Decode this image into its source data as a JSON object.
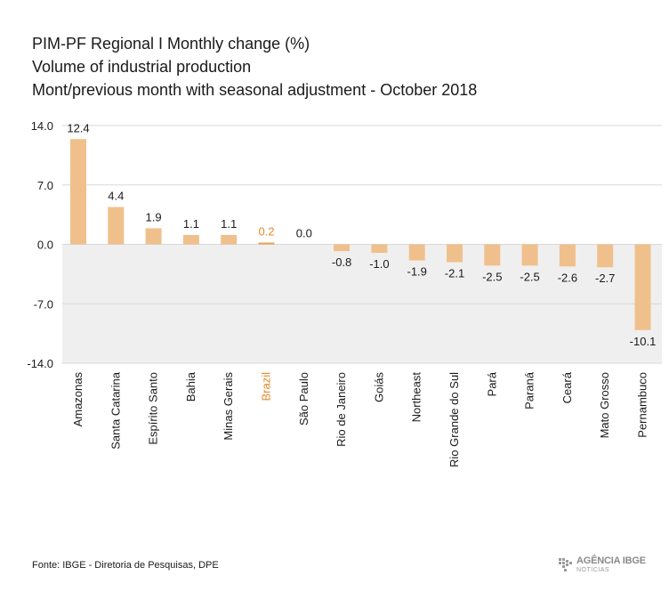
{
  "title": {
    "line1": "PIM-PF Regional I Monthly change (%)",
    "line2": "Volume of industrial production",
    "line3": "Mont/previous month with seasonal adjustment - October 2018"
  },
  "colors": {
    "bar": "#f0c08c",
    "highlight_bar": "#f0a050",
    "highlight_text": "#e8892a",
    "negative_band": "#efefef",
    "grid": "#d9d9d9",
    "axis_text": "#1a1a1a"
  },
  "chart_data": {
    "type": "bar",
    "categories": [
      "Amazonas",
      "Santa Catarina",
      "Espírito Santo",
      "Bahia",
      "Minas Gerais",
      "Brazil",
      "São Paulo",
      "Rio de Janeiro",
      "Goiás",
      "Northeast",
      "Rio Grande do Sul",
      "Pará",
      "Paraná",
      "Ceará",
      "Mato Grosso",
      "Pernambuco"
    ],
    "values": [
      12.4,
      4.4,
      1.9,
      1.1,
      1.1,
      0.2,
      0.0,
      -0.8,
      -1.0,
      -1.9,
      -2.1,
      -2.5,
      -2.5,
      -2.6,
      -2.7,
      -10.1
    ],
    "value_labels": [
      "12.4",
      "4.4",
      "1.9",
      "1.1",
      "1.1",
      "0.2",
      "0.0",
      "-0.8",
      "-1.0",
      "-1.9",
      "-2.1",
      "-2.5",
      "-2.5",
      "-2.6",
      "-2.7",
      "-10.1"
    ],
    "highlight": "Brazil",
    "ylim": [
      -14,
      14
    ],
    "yticks": [
      14,
      7,
      0,
      -7,
      -14
    ],
    "ytick_labels": [
      "14.0",
      "7.0",
      "0.0",
      "-7.0",
      "-14.0"
    ],
    "grid": true,
    "title": "PIM-PF Regional I Monthly change (%)",
    "xlabel": "",
    "ylabel": ""
  },
  "footer": {
    "source": "Fonte: IBGE - Diretoria de Pesquisas, DPE",
    "logo_text": "AGÊNCIA IBGE",
    "logo_sub": "NOTÍCIAS"
  }
}
